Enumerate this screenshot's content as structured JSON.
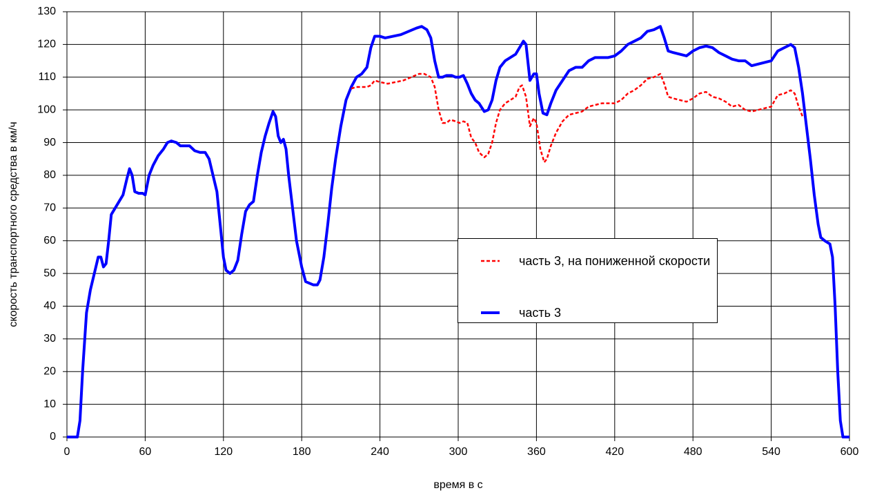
{
  "chart_data": {
    "type": "line",
    "xlabel": "время в с",
    "ylabel": "скорость транспортного средства в км/ч",
    "xlim": [
      0,
      600
    ],
    "xticks": [
      0,
      60,
      120,
      180,
      240,
      300,
      360,
      420,
      480,
      540,
      600
    ],
    "ylim": [
      0,
      130
    ],
    "yticks": [
      0,
      10,
      20,
      30,
      40,
      50,
      60,
      70,
      80,
      90,
      100,
      110,
      120,
      130
    ],
    "grid": true,
    "series": [
      {
        "name": "часть 3, на пониженной скорости",
        "color": "#ff0000",
        "dashed": true,
        "x": [
          218,
          222,
          226,
          230,
          233,
          236,
          240,
          246,
          252,
          258,
          264,
          270,
          274,
          279,
          282,
          285,
          288,
          291,
          294,
          298,
          301,
          304,
          307,
          310,
          313,
          316,
          320,
          323,
          326,
          329,
          332,
          336,
          340,
          344,
          347,
          349,
          352,
          355,
          358,
          360,
          363,
          366,
          368,
          371,
          375,
          380,
          385,
          390,
          395,
          400,
          405,
          410,
          415,
          420,
          425,
          430,
          435,
          440,
          445,
          450,
          455,
          458,
          461,
          465,
          470,
          475,
          480,
          485,
          490,
          495,
          500,
          505,
          510,
          515,
          520,
          525,
          530,
          535,
          540,
          545,
          550,
          555,
          558,
          561,
          564
        ],
        "values": [
          106.5,
          107,
          107,
          107,
          107.5,
          109,
          108.5,
          108,
          108.5,
          109,
          110,
          111,
          111,
          110,
          107,
          100,
          96,
          96,
          97,
          96.5,
          96,
          96.5,
          96,
          91.5,
          90,
          87,
          85.5,
          86.5,
          90,
          96,
          100,
          102,
          103,
          104,
          107,
          107.5,
          104,
          95,
          97.5,
          96,
          88,
          84,
          85,
          89,
          93,
          96.5,
          98.5,
          99,
          99.5,
          101,
          101.5,
          102,
          102,
          102,
          103,
          105,
          106,
          107.5,
          109.5,
          110,
          111,
          108,
          104,
          103.5,
          103,
          102.5,
          103.5,
          105,
          105.5,
          104,
          103.5,
          102.5,
          101,
          101.5,
          100,
          99.5,
          100,
          100.5,
          101,
          104.5,
          105,
          106,
          105,
          101,
          98
        ]
      },
      {
        "name": "часть 3",
        "color": "#0000ff",
        "dashed": false,
        "x": [
          0,
          5,
          8,
          10,
          12,
          15,
          18,
          21,
          24,
          26,
          28,
          30,
          32,
          34,
          37,
          40,
          43,
          46,
          48,
          50,
          52,
          55,
          58,
          60,
          63,
          66,
          70,
          74,
          77,
          80,
          84,
          87,
          90,
          94,
          98,
          102,
          106,
          109,
          112,
          115,
          118,
          120,
          122,
          125,
          128,
          131,
          134,
          137,
          140,
          143,
          146,
          149,
          152,
          155,
          158,
          160,
          162,
          164,
          166,
          168,
          170,
          173,
          176,
          180,
          183,
          186,
          189,
          192,
          194,
          197,
          200,
          203,
          206,
          210,
          214,
          218,
          222,
          226,
          230,
          233,
          236,
          240,
          244,
          250,
          256,
          262,
          268,
          272,
          276,
          279,
          282,
          285,
          288,
          291,
          295,
          298,
          301,
          304,
          307,
          310,
          313,
          316,
          320,
          323,
          326,
          329,
          332,
          336,
          340,
          344,
          347,
          350,
          352,
          355,
          358,
          360,
          362,
          365,
          368,
          371,
          375,
          380,
          385,
          390,
          395,
          400,
          405,
          410,
          415,
          420,
          425,
          430,
          435,
          440,
          445,
          450,
          455,
          458,
          461,
          465,
          470,
          475,
          480,
          485,
          490,
          495,
          500,
          505,
          510,
          515,
          520,
          525,
          530,
          535,
          540,
          545,
          550,
          555,
          558,
          561,
          564,
          567,
          570,
          573,
          576,
          578,
          581,
          585,
          587,
          589,
          591,
          593,
          595,
          600
        ],
        "values": [
          0,
          0,
          0,
          5,
          20,
          38,
          45,
          50,
          55,
          55,
          52,
          53,
          60,
          68,
          70,
          72,
          74,
          79,
          82,
          80,
          75,
          74.5,
          74.5,
          74,
          80,
          83,
          86,
          88,
          90,
          90.5,
          90,
          89,
          89,
          89,
          87.5,
          87,
          87,
          85,
          80,
          75,
          63,
          55,
          51,
          50,
          51,
          54,
          62,
          69,
          71,
          72,
          80,
          87,
          92,
          96,
          99.5,
          98,
          92,
          90,
          91,
          88,
          80,
          70,
          60,
          52,
          47.5,
          47,
          46.5,
          46.5,
          48,
          55,
          65,
          76,
          85,
          95,
          103,
          107,
          110,
          111,
          113,
          119,
          122.5,
          122.5,
          122,
          122.5,
          123,
          124,
          125,
          125.5,
          124.5,
          122,
          115,
          110,
          110,
          110.5,
          110.5,
          110,
          110,
          110.5,
          108,
          105,
          103,
          102,
          99.5,
          100,
          103,
          109,
          113,
          115,
          116,
          117,
          119,
          121,
          120,
          109,
          111,
          111,
          105,
          99,
          98.5,
          102,
          106,
          109,
          112,
          113,
          113,
          115,
          116,
          116,
          116,
          116.5,
          118,
          120,
          121,
          122,
          124,
          124.5,
          125.5,
          122,
          118,
          117.5,
          117,
          116.5,
          118,
          119,
          119.5,
          119,
          117.5,
          116.5,
          115.5,
          115,
          115,
          113.5,
          114,
          114.5,
          115,
          118,
          119,
          120,
          119,
          113,
          105,
          95,
          85,
          74,
          65,
          61,
          60,
          59,
          55,
          40,
          20,
          5,
          0,
          0
        ]
      }
    ]
  }
}
